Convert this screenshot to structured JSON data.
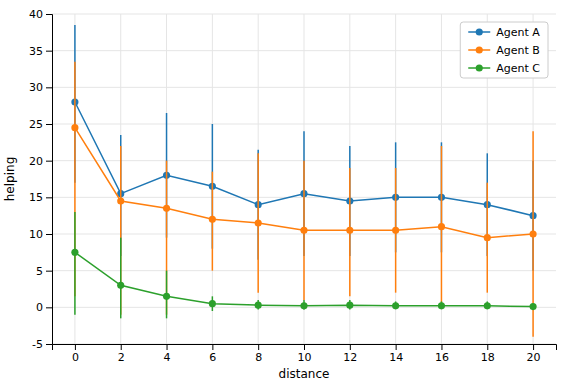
{
  "chart_data": {
    "type": "line",
    "x": [
      0,
      2,
      4,
      6,
      8,
      10,
      12,
      14,
      16,
      18,
      20
    ],
    "xlabel": "distance",
    "ylabel": "helping",
    "xlim": [
      -1,
      21
    ],
    "xticks": [
      0,
      2,
      4,
      6,
      8,
      10,
      12,
      14,
      16,
      18,
      20
    ],
    "ylim": [
      -5,
      40
    ],
    "yticks": [
      -5,
      0,
      5,
      10,
      15,
      20,
      25,
      30,
      35,
      40
    ],
    "grid": true,
    "legend": "upper right",
    "marker": "circle",
    "line_style": "solid",
    "series": [
      {
        "name": "Agent A",
        "color": "#1f77b4",
        "values": [
          28,
          15.5,
          18,
          16.5,
          14,
          15.5,
          14.5,
          15,
          15,
          14,
          12.5
        ],
        "err_upper": [
          38.5,
          23.5,
          26.5,
          25,
          21.5,
          24,
          22,
          22.5,
          22.5,
          21,
          20
        ],
        "err_lower": [
          17,
          7,
          9.5,
          8,
          6.5,
          7,
          7,
          7.5,
          7.5,
          7,
          5
        ]
      },
      {
        "name": "Agent B",
        "color": "#ff7f0e",
        "values": [
          24.5,
          14.5,
          13.5,
          12,
          11.5,
          10.5,
          10.5,
          10.5,
          11,
          9.5,
          10
        ],
        "err_upper": [
          33.5,
          22,
          20,
          18.5,
          21,
          20,
          19,
          19,
          22,
          17,
          24
        ],
        "err_lower": [
          1.5,
          -1,
          -1,
          5,
          2,
          1,
          1.5,
          2,
          0,
          2,
          -4
        ]
      },
      {
        "name": "Agent C",
        "color": "#2ca02c",
        "values": [
          7.5,
          3,
          1.5,
          0.5,
          0.3,
          0.2,
          0.3,
          0.2,
          0.2,
          0.2,
          0.1
        ],
        "err_upper": [
          13,
          9.5,
          5,
          1.5,
          1.0,
          1.0,
          1.0,
          0.8,
          0.8,
          0.8,
          0.5
        ],
        "err_lower": [
          -1,
          -1.5,
          -1.5,
          -0.5,
          -0.3,
          -0.3,
          -0.3,
          -0.2,
          -0.2,
          -0.2,
          -0.1
        ]
      }
    ]
  }
}
